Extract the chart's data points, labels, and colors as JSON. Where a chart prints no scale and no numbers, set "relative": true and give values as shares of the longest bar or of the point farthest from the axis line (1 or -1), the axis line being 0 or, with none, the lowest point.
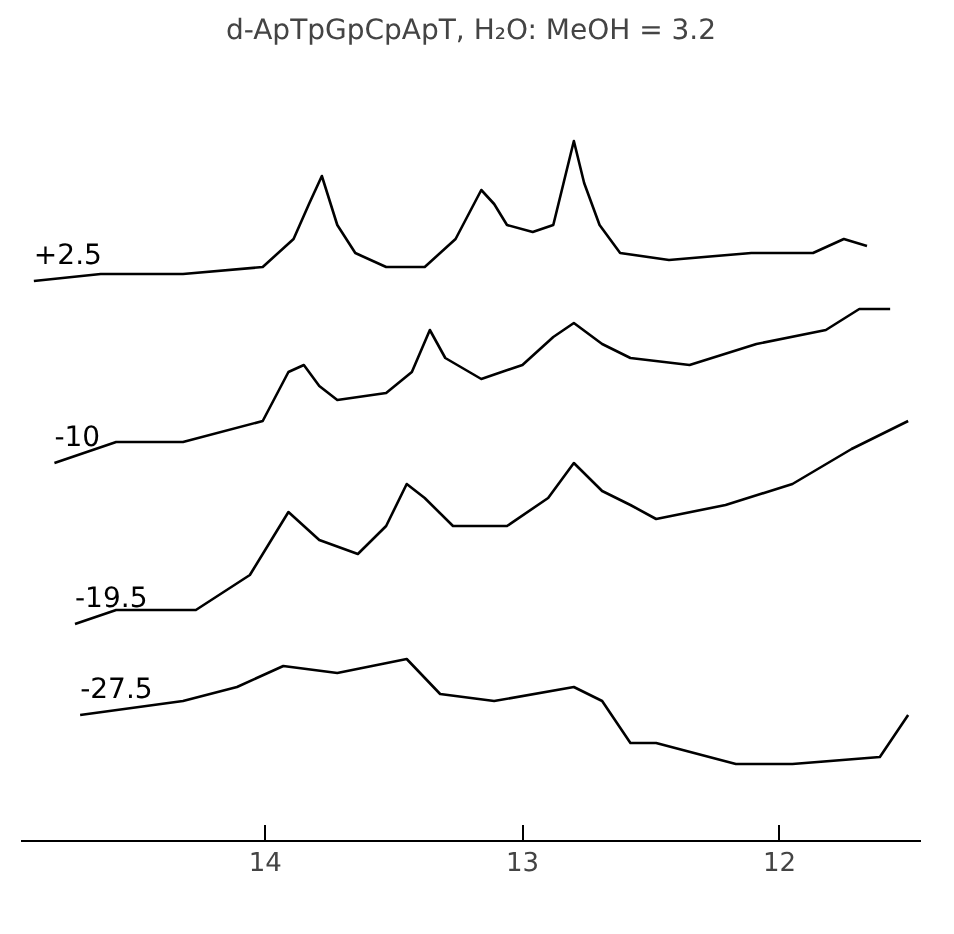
{
  "chart_data": {
    "type": "line",
    "relative": true,
    "title": "d-ApTpGpCpApT, H₂O: MeOH = 3.2",
    "xlim": [
      14.95,
      11.45
    ],
    "xticks": [
      14,
      13,
      12
    ],
    "grid": false,
    "marker": "none",
    "line_style": "solid",
    "series": [
      {
        "name": "+2.5",
        "color": "#000000",
        "x": [
          14.9,
          14.64,
          14.32,
          14.01,
          13.89,
          13.83,
          13.78,
          13.72,
          13.65,
          13.53,
          13.38,
          13.26,
          13.16,
          13.11,
          13.06,
          12.96,
          12.88,
          12.84,
          12.8,
          12.76,
          12.7,
          12.62,
          12.43,
          12.11,
          11.87,
          11.75,
          11.66
        ],
        "values": [
          0.8,
          0.81,
          0.81,
          0.82,
          0.86,
          0.91,
          0.95,
          0.88,
          0.84,
          0.82,
          0.82,
          0.86,
          0.93,
          0.91,
          0.88,
          0.87,
          0.88,
          0.94,
          1.0,
          0.94,
          0.88,
          0.84,
          0.83,
          0.84,
          0.84,
          0.86,
          0.85
        ]
      },
      {
        "name": "-10",
        "color": "#000000",
        "x": [
          14.82,
          14.58,
          14.32,
          14.01,
          13.91,
          13.85,
          13.79,
          13.72,
          13.53,
          13.43,
          13.36,
          13.3,
          13.16,
          13.0,
          12.88,
          12.8,
          12.69,
          12.58,
          12.35,
          12.09,
          11.82,
          11.69,
          11.57
        ],
        "values": [
          0.54,
          0.57,
          0.57,
          0.6,
          0.67,
          0.68,
          0.65,
          0.63,
          0.64,
          0.67,
          0.73,
          0.69,
          0.66,
          0.68,
          0.72,
          0.74,
          0.71,
          0.69,
          0.68,
          0.71,
          0.73,
          0.76,
          0.76
        ]
      },
      {
        "name": "-19.5",
        "color": "#000000",
        "x": [
          14.74,
          14.58,
          14.27,
          14.06,
          13.91,
          13.79,
          13.64,
          13.53,
          13.45,
          13.38,
          13.27,
          13.06,
          12.9,
          12.8,
          12.69,
          12.58,
          12.48,
          12.21,
          11.95,
          11.72,
          11.5
        ],
        "values": [
          0.31,
          0.33,
          0.33,
          0.38,
          0.47,
          0.43,
          0.41,
          0.45,
          0.51,
          0.49,
          0.45,
          0.45,
          0.49,
          0.54,
          0.5,
          0.48,
          0.46,
          0.48,
          0.51,
          0.56,
          0.6
        ]
      },
      {
        "name": "-27.5",
        "color": "#000000",
        "x": [
          14.72,
          14.32,
          14.11,
          13.93,
          13.72,
          13.45,
          13.32,
          13.11,
          12.8,
          12.69,
          12.58,
          12.48,
          12.17,
          11.95,
          11.61,
          11.5
        ],
        "values": [
          0.18,
          0.2,
          0.22,
          0.25,
          0.24,
          0.26,
          0.21,
          0.2,
          0.22,
          0.2,
          0.14,
          0.14,
          0.11,
          0.11,
          0.12,
          0.18
        ]
      }
    ]
  }
}
